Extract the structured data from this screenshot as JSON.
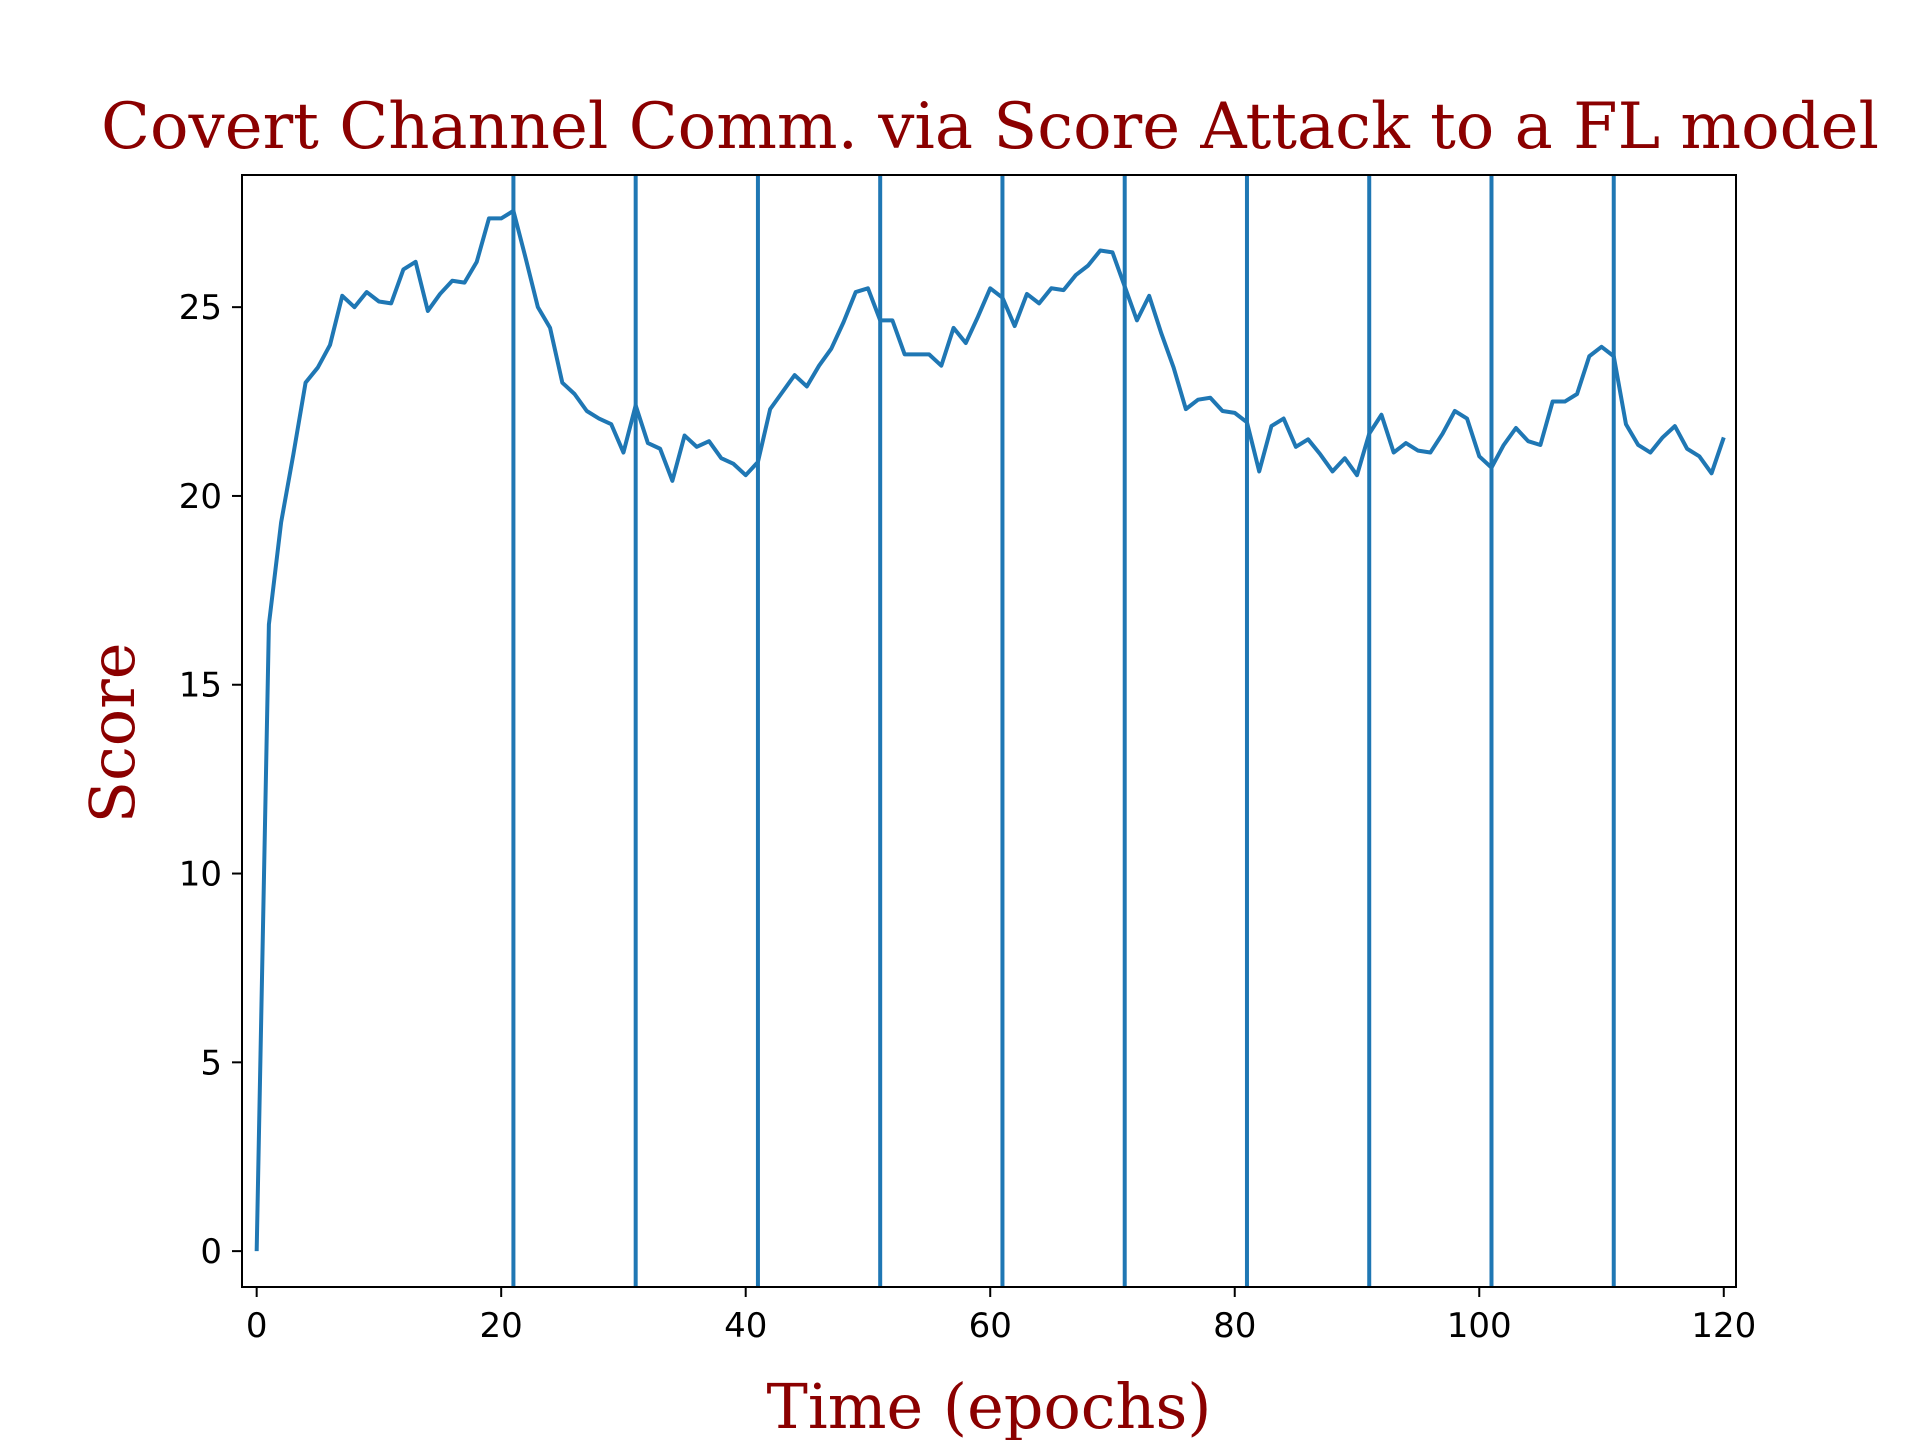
{
  "chart_data": {
    "type": "line",
    "title": "Covert Channel Comm. via Score Attack to a FL model",
    "xlabel": "Time (epochs)",
    "ylabel": "Score",
    "xlim": [
      -1.2,
      121
    ],
    "ylim": [
      -0.95,
      28.5
    ],
    "xticks": [
      0,
      20,
      40,
      60,
      80,
      100,
      120
    ],
    "yticks": [
      0,
      5,
      10,
      15,
      20,
      25
    ],
    "grid": false,
    "vlines": [
      21,
      31,
      41,
      51,
      61,
      71,
      81,
      91,
      101,
      111
    ],
    "series": [
      {
        "color": "#1f77b4",
        "x": [
          0,
          1,
          2,
          3,
          4,
          5,
          6,
          7,
          8,
          9,
          10,
          11,
          12,
          13,
          14,
          15,
          16,
          17,
          18,
          19,
          20,
          21,
          22,
          23,
          24,
          25,
          26,
          27,
          28,
          29,
          30,
          31,
          32,
          33,
          34,
          35,
          36,
          37,
          38,
          39,
          40,
          41,
          42,
          43,
          44,
          45,
          46,
          47,
          48,
          49,
          50,
          51,
          52,
          53,
          54,
          55,
          56,
          57,
          58,
          59,
          60,
          61,
          62,
          63,
          64,
          65,
          66,
          67,
          68,
          69,
          70,
          71,
          72,
          73,
          74,
          75,
          76,
          77,
          78,
          79,
          80,
          81,
          82,
          83,
          84,
          85,
          86,
          87,
          88,
          89,
          90,
          91,
          92,
          93,
          94,
          95,
          96,
          97,
          98,
          99,
          100,
          101,
          102,
          103,
          104,
          105,
          106,
          107,
          108,
          109,
          110,
          111,
          112,
          113,
          114,
          115,
          116,
          117,
          118,
          119,
          120
        ],
        "values": [
          0.0,
          16.6,
          19.3,
          21.1,
          23.0,
          23.4,
          24.0,
          25.3,
          25.0,
          25.4,
          25.15,
          25.1,
          26.0,
          26.2,
          24.9,
          25.35,
          25.7,
          25.65,
          26.2,
          27.35,
          27.35,
          27.55,
          26.3,
          25.0,
          24.45,
          23.0,
          22.7,
          22.25,
          22.05,
          21.9,
          21.15,
          22.4,
          21.4,
          21.25,
          20.4,
          21.6,
          21.3,
          21.45,
          21.0,
          20.85,
          20.55,
          20.9,
          22.3,
          22.75,
          23.2,
          22.9,
          23.45,
          23.9,
          24.6,
          25.4,
          25.5,
          24.65,
          24.65,
          23.75,
          23.75,
          23.75,
          23.45,
          24.45,
          24.05,
          24.75,
          25.5,
          25.25,
          24.5,
          25.35,
          25.1,
          25.5,
          25.45,
          25.85,
          26.1,
          26.5,
          26.45,
          25.55,
          24.65,
          25.3,
          24.3,
          23.4,
          22.3,
          22.55,
          22.6,
          22.25,
          22.2,
          21.95,
          20.65,
          21.85,
          22.05,
          21.3,
          21.5,
          21.1,
          20.65,
          21.0,
          20.55,
          21.65,
          22.15,
          21.15,
          21.4,
          21.2,
          21.15,
          21.65,
          22.25,
          22.05,
          21.05,
          20.75,
          21.35,
          21.8,
          21.45,
          21.35,
          22.5,
          22.5,
          22.7,
          23.7,
          23.95,
          23.7,
          21.9,
          21.35,
          21.15,
          21.55,
          21.85,
          21.25,
          21.05,
          20.6,
          21.55
        ]
      }
    ]
  },
  "colors": {
    "title": "#8b0000",
    "axis_titles": "#8b0000",
    "series_line": "#1f77b4",
    "vlines": "#1f77b4"
  }
}
